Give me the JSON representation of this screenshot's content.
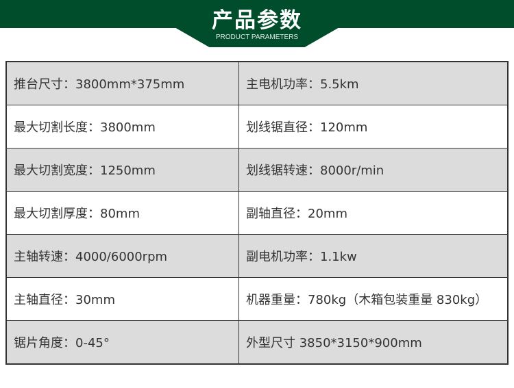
{
  "header": {
    "title": "产品参数",
    "subtitle": "PRODUCT PARAMETERS",
    "color": "#004d2c"
  },
  "rows": [
    [
      "推台尺寸：3800mm*375mm",
      "主电机功率：5.5km"
    ],
    [
      "最大切割长度：3800mm",
      "划线锯直径：120mm"
    ],
    [
      "最大切割宽度：1250mm",
      "划线锯转速：8000r/min"
    ],
    [
      "最大切割厚度：80mm",
      "副轴直径：20mm"
    ],
    [
      "主轴转速：4000/6000rpm",
      "副电机功率：1.1kw"
    ],
    [
      "主轴直径：30mm",
      "机器重量：780kg（木箱包装重量 830kg）"
    ],
    [
      "锯片角度：0-45°",
      "外型尺寸 3850*3150*900mm"
    ]
  ]
}
